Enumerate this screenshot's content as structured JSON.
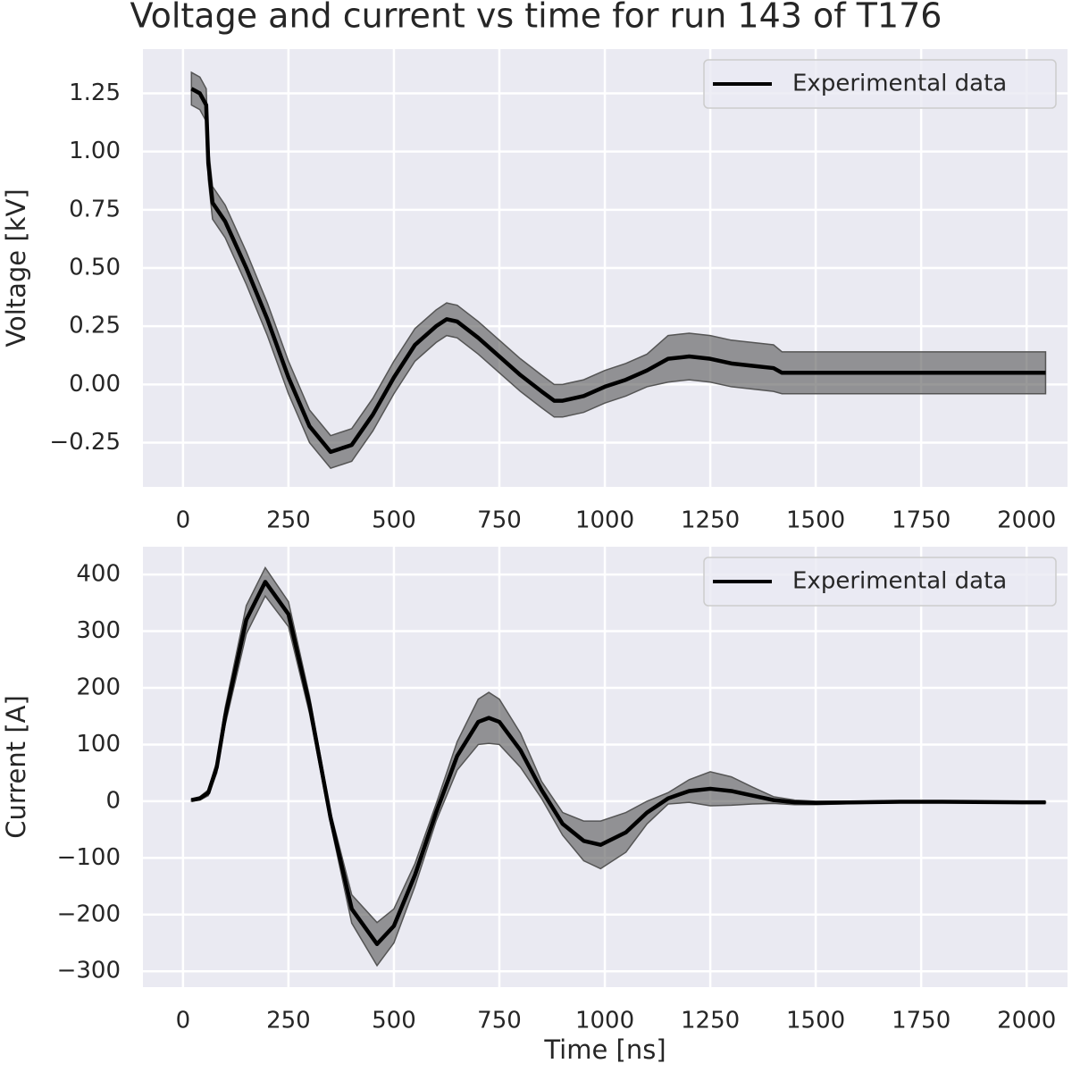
{
  "chart_data": [
    {
      "type": "line",
      "title": "Voltage and current vs time for run 143 of T176",
      "ylabel": "Voltage [kV]",
      "x": [
        20,
        40,
        55,
        60,
        70,
        100,
        150,
        200,
        250,
        300,
        350,
        400,
        450,
        500,
        550,
        600,
        625,
        650,
        700,
        750,
        800,
        850,
        880,
        900,
        950,
        1000,
        1050,
        1100,
        1150,
        1200,
        1250,
        1300,
        1350,
        1400,
        1420,
        1500,
        1600,
        1700,
        1800,
        1900,
        2000,
        2045
      ],
      "series": [
        {
          "name": "Experimental data",
          "color": "#000000",
          "band_color": "#555555",
          "values": [
            1.27,
            1.25,
            1.2,
            0.95,
            0.78,
            0.7,
            0.5,
            0.28,
            0.03,
            -0.18,
            -0.29,
            -0.26,
            -0.13,
            0.03,
            0.17,
            0.25,
            0.28,
            0.27,
            0.2,
            0.12,
            0.04,
            -0.03,
            -0.07,
            -0.07,
            -0.05,
            -0.01,
            0.02,
            0.06,
            0.11,
            0.12,
            0.11,
            0.09,
            0.08,
            0.07,
            0.05,
            0.05,
            0.05,
            0.05,
            0.05,
            0.05,
            0.05,
            0.05
          ],
          "error": [
            0.07,
            0.07,
            0.07,
            0.07,
            0.07,
            0.07,
            0.07,
            0.07,
            0.07,
            0.07,
            0.07,
            0.07,
            0.07,
            0.07,
            0.07,
            0.07,
            0.07,
            0.07,
            0.07,
            0.07,
            0.07,
            0.07,
            0.07,
            0.07,
            0.07,
            0.07,
            0.07,
            0.07,
            0.1,
            0.1,
            0.1,
            0.1,
            0.1,
            0.1,
            0.09,
            0.09,
            0.09,
            0.09,
            0.09,
            0.09,
            0.09,
            0.09
          ]
        }
      ],
      "xlim": [
        -95,
        2097
      ],
      "ylim": [
        -0.44,
        1.44
      ],
      "xticks": [
        0,
        250,
        500,
        750,
        1000,
        1250,
        1500,
        1750,
        2000
      ],
      "yticks": [
        {
          "value": -0.25,
          "label": "−0.25"
        },
        {
          "value": 0,
          "label": "0.00"
        },
        {
          "value": 0.25,
          "label": "0.25"
        },
        {
          "value": 0.5,
          "label": "0.50"
        },
        {
          "value": 0.75,
          "label": "0.75"
        },
        {
          "value": 1,
          "label": "1.00"
        },
        {
          "value": 1.25,
          "label": "1.25"
        }
      ],
      "grid": true,
      "legend": "upper right"
    },
    {
      "type": "line",
      "xlabel": "Time [ns]",
      "ylabel": "Current [A]",
      "x": [
        20,
        40,
        60,
        80,
        100,
        150,
        195,
        250,
        300,
        350,
        400,
        460,
        500,
        550,
        600,
        650,
        700,
        725,
        750,
        800,
        850,
        900,
        950,
        990,
        1050,
        1100,
        1150,
        1200,
        1250,
        1300,
        1350,
        1400,
        1450,
        1500,
        1600,
        1700,
        1800,
        2000,
        2045
      ],
      "series": [
        {
          "name": "Experimental data",
          "color": "#000000",
          "band_color": "#555555",
          "values": [
            2,
            5,
            15,
            60,
            150,
            320,
            387,
            330,
            170,
            -30,
            -190,
            -252,
            -220,
            -130,
            -20,
            80,
            140,
            147,
            140,
            90,
            20,
            -40,
            -70,
            -77,
            -55,
            -20,
            5,
            18,
            22,
            18,
            10,
            2,
            -2,
            -3,
            -2,
            -1,
            -1,
            -2,
            -2
          ],
          "error": [
            2,
            3,
            5,
            10,
            15,
            25,
            25,
            22,
            15,
            10,
            25,
            38,
            30,
            20,
            15,
            25,
            40,
            45,
            40,
            30,
            15,
            20,
            35,
            42,
            35,
            20,
            10,
            20,
            30,
            25,
            15,
            6,
            4,
            3,
            2,
            2,
            1,
            1,
            1
          ]
        }
      ],
      "xlim": [
        -95,
        2097
      ],
      "ylim": [
        -328,
        449
      ],
      "xticks": [
        0,
        250,
        500,
        750,
        1000,
        1250,
        1500,
        1750,
        2000
      ],
      "yticks": [
        {
          "value": -300,
          "label": "−300"
        },
        {
          "value": -200,
          "label": "−200"
        },
        {
          "value": -100,
          "label": "−100"
        },
        0,
        100,
        200,
        300,
        400
      ],
      "grid": true,
      "legend": "upper right"
    }
  ]
}
